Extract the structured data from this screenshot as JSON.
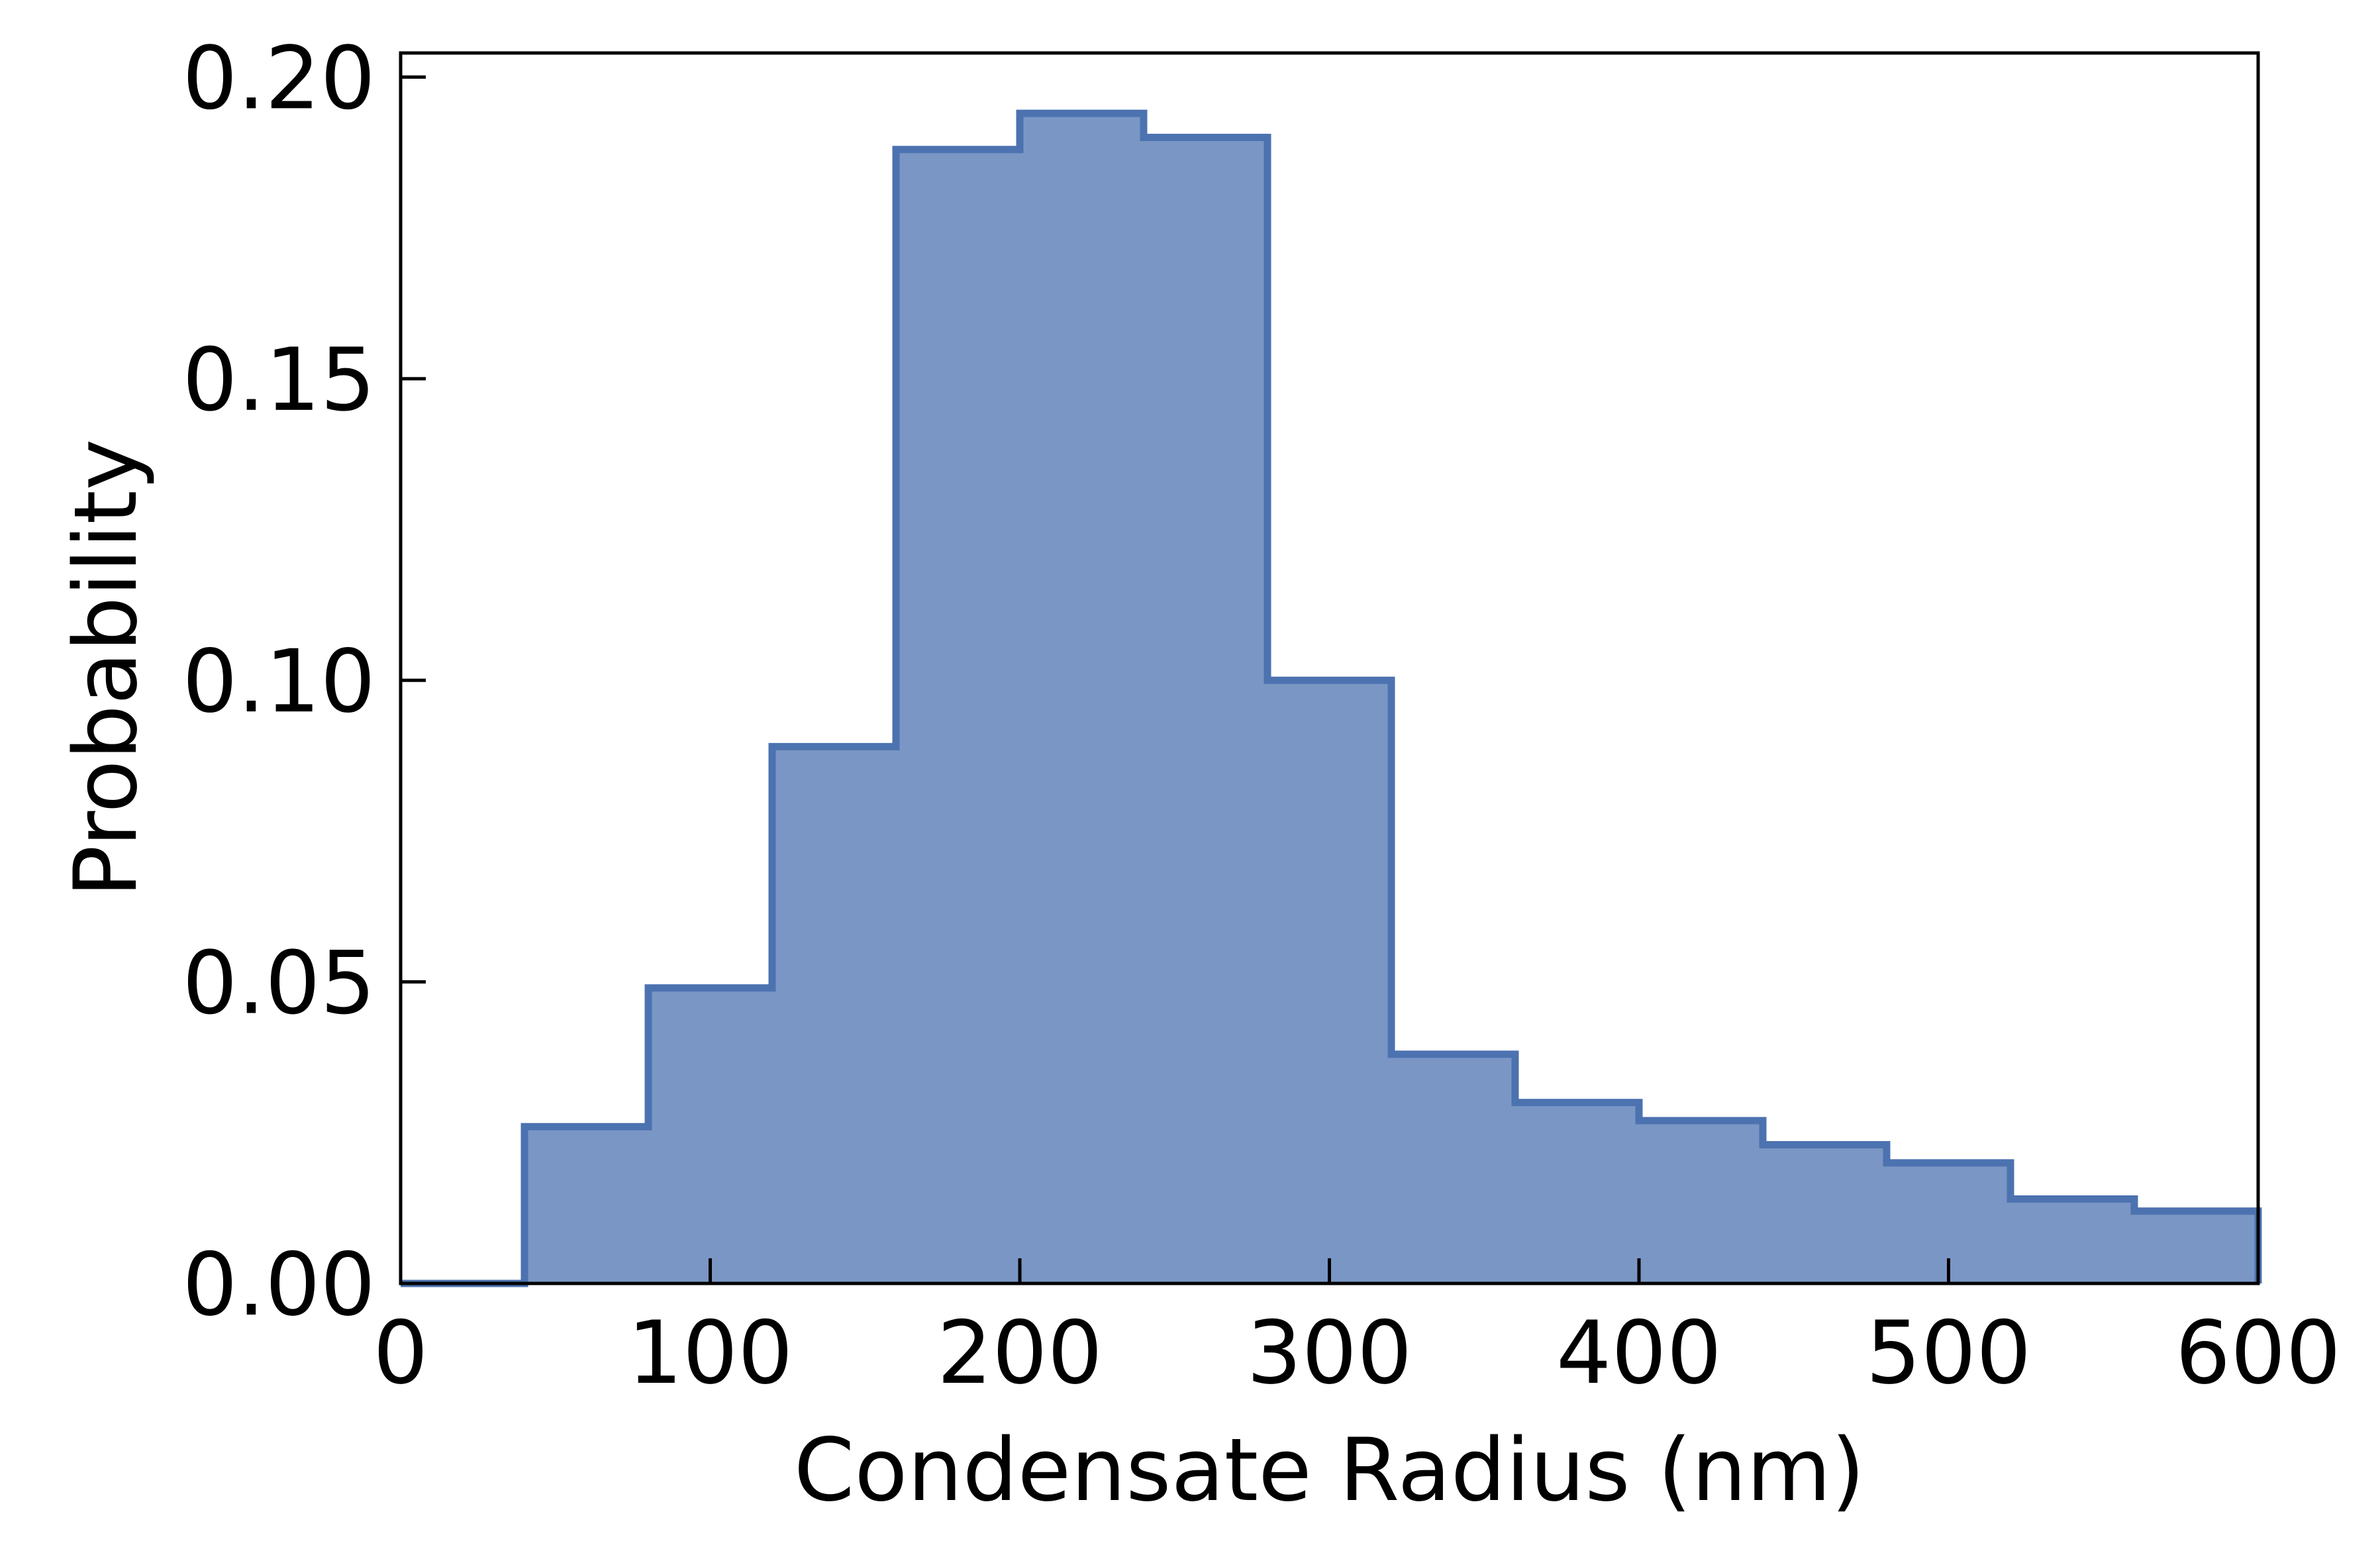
{
  "chart_data": {
    "type": "histogram",
    "title": "",
    "xlabel": "Condensate Radius (nm)",
    "ylabel": "Probability",
    "xlim": [
      0,
      600
    ],
    "ylim": [
      0,
      0.204
    ],
    "xticks": [
      0,
      100,
      200,
      300,
      400,
      500,
      600
    ],
    "xtick_labels": [
      "0",
      "100",
      "200",
      "300",
      "400",
      "500",
      "600"
    ],
    "yticks": [
      0.0,
      0.05,
      0.1,
      0.15,
      0.2
    ],
    "ytick_labels": [
      "0.00",
      "0.05",
      "0.10",
      "0.15",
      "0.20"
    ],
    "bin_edges": [
      0,
      40,
      80,
      120,
      160,
      200,
      240,
      280,
      320,
      360,
      400,
      440,
      480,
      520,
      560,
      600
    ],
    "values": [
      0.0,
      0.026,
      0.049,
      0.089,
      0.188,
      0.194,
      0.19,
      0.1,
      0.038,
      0.03,
      0.027,
      0.023,
      0.02,
      0.014,
      0.012
    ],
    "grid": false,
    "tick_direction": "in",
    "fill_color": "#7a96c4",
    "edge_color": "#4c72b0",
    "axis_color": "#000000"
  }
}
